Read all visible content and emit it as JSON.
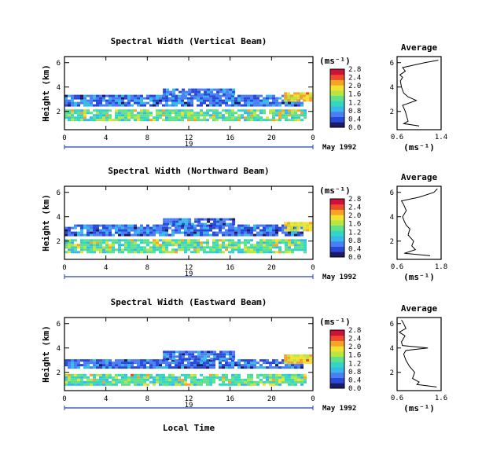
{
  "figure": {
    "xlabel": "Local Time",
    "date_label": "May 1992",
    "day_label": "19",
    "unit_label": "(ms⁻¹)",
    "average_title": "Average",
    "average_unit": "(ms⁻¹)"
  },
  "colormap": [
    "#1a1a66",
    "#2848d8",
    "#4a7ef5",
    "#37b8e8",
    "#33d6c4",
    "#5fe08a",
    "#b8e640",
    "#f2e12e",
    "#f7a326",
    "#ef4b2a",
    "#d0103a"
  ],
  "chart_data": [
    {
      "type": "heatmap",
      "title": "Spectral Width (Vertical Beam)",
      "ylabel": "Height (km)",
      "xlim": [
        0,
        24
      ],
      "x_ticks": [
        "0",
        "4",
        "8",
        "12",
        "16",
        "20",
        "0"
      ],
      "ylim": [
        0.5,
        6.5
      ],
      "y_ticks": [
        "2",
        "4",
        "6"
      ],
      "colorbar_ticks": [
        "0.0",
        "0.4",
        "0.8",
        "1.2",
        "1.6",
        "2.0",
        "2.4",
        "2.8"
      ],
      "cloud_bands": [
        {
          "x0": 0,
          "x1": 23.2,
          "y0": 1.2,
          "y1": 2.0,
          "level": 0.45
        },
        {
          "x0": 0,
          "x1": 23.0,
          "y0": 2.4,
          "y1": 3.3,
          "level": 0.2
        },
        {
          "x0": 9.5,
          "x1": 16.2,
          "y0": 3.3,
          "y1": 3.8,
          "level": 0.2
        },
        {
          "x0": 21.2,
          "x1": 23.8,
          "y0": 2.8,
          "y1": 3.5,
          "level": 0.7
        }
      ],
      "average_profile": {
        "xlim": [
          0.6,
          1.4
        ],
        "x_ticks": [
          "0.6",
          "1.4"
        ],
        "y_ticks": [
          "2",
          "4",
          "6"
        ],
        "height_km": [
          0.8,
          1.0,
          1.2,
          1.5,
          2.0,
          2.5,
          2.9,
          3.2,
          3.5,
          4.0,
          4.5,
          4.8,
          5.0,
          5.3,
          5.6,
          6.0,
          6.2
        ],
        "width": [
          1.0,
          0.72,
          0.8,
          0.78,
          0.75,
          0.7,
          0.95,
          0.8,
          0.72,
          0.68,
          0.66,
          0.7,
          0.65,
          0.75,
          0.7,
          1.1,
          1.35
        ]
      }
    },
    {
      "type": "heatmap",
      "title": "Spectral Width (Northward Beam)",
      "ylabel": "Height (km)",
      "xlim": [
        0,
        24
      ],
      "x_ticks": [
        "0",
        "4",
        "8",
        "12",
        "16",
        "20",
        "0"
      ],
      "ylim": [
        0.5,
        6.5
      ],
      "y_ticks": [
        "2",
        "4",
        "6"
      ],
      "colorbar_ticks": [
        "0.0",
        "0.4",
        "0.8",
        "1.2",
        "1.6",
        "2.0",
        "2.4",
        "2.8"
      ],
      "cloud_bands": [
        {
          "x0": 0,
          "x1": 23.2,
          "y0": 1.0,
          "y1": 2.0,
          "level": 0.45
        },
        {
          "x0": 0,
          "x1": 23.0,
          "y0": 2.4,
          "y1": 3.3,
          "level": 0.2
        },
        {
          "x0": 9.5,
          "x1": 16.2,
          "y0": 3.3,
          "y1": 3.8,
          "level": 0.2
        },
        {
          "x0": 21.2,
          "x1": 23.8,
          "y0": 2.8,
          "y1": 3.5,
          "level": 0.7
        }
      ],
      "average_profile": {
        "xlim": [
          0.6,
          1.8
        ],
        "x_ticks": [
          "0.6",
          "1.8"
        ],
        "y_ticks": [
          "2",
          "4",
          "6"
        ],
        "height_km": [
          0.8,
          1.0,
          1.3,
          1.6,
          2.0,
          2.5,
          3.0,
          3.3,
          3.6,
          4.0,
          4.5,
          5.0,
          5.3,
          5.6,
          6.0,
          6.3
        ],
        "width": [
          1.5,
          0.8,
          1.1,
          1.0,
          1.05,
          0.9,
          0.95,
          0.85,
          0.8,
          0.75,
          0.85,
          0.78,
          0.72,
          1.2,
          1.6,
          1.7
        ]
      }
    },
    {
      "type": "heatmap",
      "title": "Spectral Width (Eastward Beam)",
      "ylabel": "Height (km)",
      "xlim": [
        0,
        24
      ],
      "x_ticks": [
        "0",
        "4",
        "8",
        "12",
        "16",
        "20",
        "0"
      ],
      "ylim": [
        0.5,
        6.5
      ],
      "y_ticks": [
        "2",
        "4",
        "6"
      ],
      "colorbar_ticks": [
        "0.0",
        "0.4",
        "0.8",
        "1.2",
        "1.6",
        "2.0",
        "2.4",
        "2.8"
      ],
      "cloud_bands": [
        {
          "x0": 0,
          "x1": 23.2,
          "y0": 0.9,
          "y1": 1.8,
          "level": 0.45
        },
        {
          "x0": 0,
          "x1": 23.0,
          "y0": 2.3,
          "y1": 3.0,
          "level": 0.2
        },
        {
          "x0": 9.5,
          "x1": 16.2,
          "y0": 3.0,
          "y1": 3.6,
          "level": 0.2
        },
        {
          "x0": 21.2,
          "x1": 23.8,
          "y0": 2.7,
          "y1": 3.4,
          "level": 0.7
        }
      ],
      "average_profile": {
        "xlim": [
          0.6,
          1.6
        ],
        "x_ticks": [
          "0.6",
          "1.6"
        ],
        "y_ticks": [
          "2",
          "4",
          "6"
        ],
        "height_km": [
          0.8,
          1.0,
          1.2,
          1.5,
          2.0,
          2.5,
          3.0,
          3.5,
          3.8,
          4.0,
          4.2,
          4.5,
          5.0,
          5.3,
          5.6,
          6.0,
          6.3
        ],
        "width": [
          1.5,
          1.05,
          1.1,
          0.95,
          1.0,
          0.88,
          0.8,
          0.75,
          0.8,
          1.3,
          0.72,
          0.7,
          0.78,
          0.65,
          0.8,
          0.75,
          0.7
        ]
      }
    }
  ]
}
